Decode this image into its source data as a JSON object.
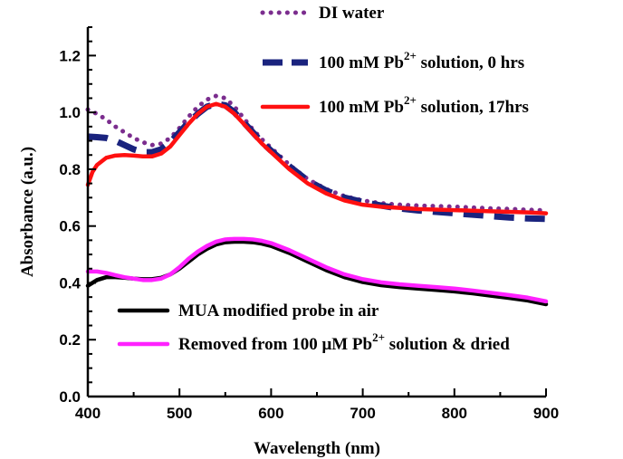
{
  "chart_data": {
    "type": "line",
    "title": "",
    "xlabel": "Wavelength (nm)",
    "ylabel": "Absorbance (a.u.)",
    "xlim": [
      400,
      900
    ],
    "ylim": [
      0.0,
      1.3
    ],
    "x_ticks": [
      "400",
      "500",
      "600",
      "700",
      "800",
      "900"
    ],
    "y_ticks": [
      "0.0",
      "0.2",
      "0.4",
      "0.6",
      "0.8",
      "1.0",
      "1.2"
    ],
    "grid": false,
    "legend_upper": "top-right",
    "legend_lower": "bottom-center",
    "series": [
      {
        "key": "di",
        "name": "DI water",
        "legend_parts": [
          "DI water"
        ],
        "color": "#7b2d8e",
        "style": "dotted",
        "x": [
          400,
          410,
          420,
          430,
          440,
          450,
          460,
          470,
          480,
          490,
          500,
          510,
          520,
          530,
          540,
          550,
          560,
          570,
          580,
          590,
          600,
          620,
          640,
          660,
          680,
          700,
          720,
          740,
          760,
          780,
          800,
          820,
          840,
          860,
          880,
          900
        ],
        "y": [
          1.01,
          0.995,
          0.975,
          0.95,
          0.93,
          0.91,
          0.895,
          0.885,
          0.89,
          0.91,
          0.945,
          0.985,
          1.02,
          1.045,
          1.058,
          1.05,
          1.02,
          0.98,
          0.94,
          0.905,
          0.875,
          0.815,
          0.765,
          0.73,
          0.705,
          0.69,
          0.68,
          0.675,
          0.672,
          0.67,
          0.668,
          0.665,
          0.662,
          0.66,
          0.657,
          0.655
        ]
      },
      {
        "key": "pb0",
        "name": "100 mM Pb2+ solution, 0 hrs",
        "legend_parts": [
          "100 mM Pb",
          "2+",
          " solution, 0 hrs"
        ],
        "color": "#1a237e",
        "style": "dashed",
        "x": [
          400,
          410,
          420,
          430,
          440,
          450,
          460,
          470,
          480,
          490,
          500,
          510,
          520,
          530,
          540,
          550,
          560,
          570,
          580,
          590,
          600,
          620,
          640,
          660,
          680,
          700,
          720,
          740,
          760,
          780,
          800,
          820,
          840,
          860,
          880,
          900
        ],
        "y": [
          0.915,
          0.913,
          0.91,
          0.9,
          0.885,
          0.87,
          0.86,
          0.86,
          0.87,
          0.895,
          0.93,
          0.965,
          0.995,
          1.02,
          1.03,
          1.025,
          1.0,
          0.965,
          0.93,
          0.895,
          0.865,
          0.81,
          0.76,
          0.725,
          0.7,
          0.685,
          0.672,
          0.662,
          0.655,
          0.65,
          0.645,
          0.64,
          0.635,
          0.63,
          0.627,
          0.625
        ]
      },
      {
        "key": "pb17",
        "name": "100 mM Pb2+ solution, 17hrs",
        "legend_parts": [
          "100 mM Pb",
          "2+",
          " solution, 17hrs"
        ],
        "color": "#ff1010",
        "style": "solid",
        "x": [
          400,
          405,
          410,
          420,
          430,
          440,
          450,
          460,
          470,
          480,
          490,
          500,
          510,
          520,
          530,
          540,
          550,
          560,
          570,
          580,
          590,
          600,
          620,
          640,
          660,
          680,
          700,
          720,
          740,
          760,
          780,
          800,
          820,
          840,
          860,
          880,
          900
        ],
        "y": [
          0.745,
          0.79,
          0.815,
          0.84,
          0.848,
          0.85,
          0.848,
          0.845,
          0.845,
          0.855,
          0.88,
          0.92,
          0.96,
          0.995,
          1.02,
          1.03,
          1.02,
          0.995,
          0.96,
          0.925,
          0.89,
          0.86,
          0.8,
          0.75,
          0.715,
          0.69,
          0.675,
          0.668,
          0.664,
          0.66,
          0.658,
          0.656,
          0.654,
          0.652,
          0.65,
          0.648,
          0.645
        ]
      },
      {
        "key": "mua",
        "name": "MUA modified probe in air",
        "legend_parts": [
          "MUA modified probe in air"
        ],
        "color": "#000000",
        "style": "solid",
        "x": [
          400,
          410,
          420,
          430,
          440,
          450,
          460,
          470,
          480,
          490,
          500,
          510,
          520,
          530,
          540,
          550,
          560,
          570,
          580,
          590,
          600,
          620,
          640,
          660,
          680,
          700,
          720,
          740,
          760,
          780,
          800,
          820,
          840,
          860,
          880,
          900
        ],
        "y": [
          0.39,
          0.41,
          0.42,
          0.42,
          0.418,
          0.415,
          0.413,
          0.413,
          0.418,
          0.43,
          0.45,
          0.475,
          0.5,
          0.52,
          0.535,
          0.543,
          0.545,
          0.545,
          0.543,
          0.538,
          0.53,
          0.505,
          0.475,
          0.445,
          0.42,
          0.403,
          0.392,
          0.385,
          0.38,
          0.375,
          0.37,
          0.363,
          0.355,
          0.347,
          0.338,
          0.325
        ]
      },
      {
        "key": "removed",
        "name": "Removed from 100 μM Pb2+ solution & dried",
        "legend_parts": [
          "Removed from 100 μM Pb",
          "2+",
          " solution & dried"
        ],
        "color": "#ff22ff",
        "style": "solid",
        "x": [
          400,
          410,
          420,
          430,
          440,
          450,
          460,
          470,
          480,
          490,
          500,
          510,
          520,
          530,
          540,
          550,
          560,
          570,
          580,
          590,
          600,
          620,
          640,
          660,
          680,
          700,
          720,
          740,
          760,
          780,
          800,
          820,
          840,
          860,
          880,
          900
        ],
        "y": [
          0.44,
          0.44,
          0.435,
          0.427,
          0.42,
          0.415,
          0.41,
          0.41,
          0.415,
          0.43,
          0.455,
          0.485,
          0.51,
          0.53,
          0.545,
          0.553,
          0.555,
          0.555,
          0.553,
          0.548,
          0.54,
          0.515,
          0.485,
          0.455,
          0.43,
          0.413,
          0.402,
          0.395,
          0.39,
          0.385,
          0.38,
          0.373,
          0.365,
          0.357,
          0.348,
          0.335
        ]
      }
    ]
  }
}
